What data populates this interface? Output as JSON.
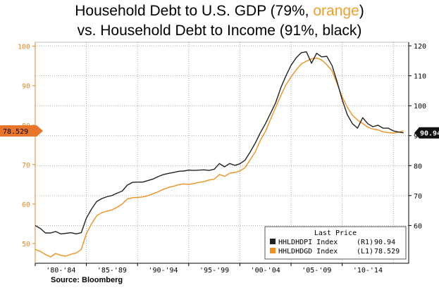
{
  "title": {
    "line1_prefix": "Household Debt to U.S. GDP (79%, ",
    "line1_highlight": "orange",
    "line1_suffix": ")",
    "line2": "vs. Household Debt to Income (91%, black)"
  },
  "source": "Source: Bloomberg",
  "colors": {
    "orange": "#f0901e",
    "black": "#222222",
    "grid": "#9a9a9a",
    "left_axis": "#e08a2a"
  },
  "chart_data": {
    "type": "line",
    "x_labels": [
      "'80-'84",
      "'85-'89",
      "'90-'94",
      "'95-'99",
      "'00-'04",
      "'05-'09",
      "'10-'14"
    ],
    "x_range": [
      1980,
      2016.5
    ],
    "left_axis": {
      "ticks": [
        "50",
        "60",
        "70",
        "80",
        "90",
        "100"
      ],
      "ylim": [
        45,
        101
      ],
      "color": "orange"
    },
    "right_axis": {
      "ticks": [
        "60",
        "70",
        "80",
        "90",
        "100",
        "110",
        "120"
      ],
      "ylim": [
        47.4,
        121.2
      ]
    },
    "grid": true,
    "last_price_tags": {
      "left": "78.529",
      "right": "90.94"
    },
    "legend": {
      "title": "Last Price",
      "placement": "bottom-right",
      "entries": [
        {
          "label": "HHLDHDPI Index",
          "axis": "(R1)",
          "value": "90.94",
          "color": "black"
        },
        {
          "label": "HHLDHDGD Index",
          "axis": "(L1)",
          "value": "78.529",
          "color": "orange"
        }
      ]
    },
    "series": [
      {
        "name": "HHLDHDGD Index",
        "axis": "left",
        "color": "orange",
        "x": [
          1980,
          1980.5,
          1981,
          1981.5,
          1982,
          1982.5,
          1983,
          1983.5,
          1984,
          1984.5,
          1985,
          1985.5,
          1986,
          1986.5,
          1987,
          1987.5,
          1988,
          1988.5,
          1989,
          1989.5,
          1990,
          1990.5,
          1991,
          1991.5,
          1992,
          1992.5,
          1993,
          1993.5,
          1994,
          1994.5,
          1995,
          1995.5,
          1996,
          1996.5,
          1997,
          1997.5,
          1998,
          1998.5,
          1999,
          1999.5,
          2000,
          2000.5,
          2001,
          2001.5,
          2002,
          2002.5,
          2003,
          2003.5,
          2004,
          2004.5,
          2005,
          2005.5,
          2006,
          2006.5,
          2007,
          2007.5,
          2008,
          2008.5,
          2009,
          2009.5,
          2010,
          2010.5,
          2011,
          2011.5,
          2012,
          2012.5,
          2013,
          2013.5,
          2014,
          2014.5,
          2015,
          2015.5,
          2016
        ],
        "values": [
          48.5,
          48.0,
          47.2,
          46.6,
          47.5,
          47.0,
          46.8,
          47.3,
          47.6,
          48.5,
          52.5,
          55.0,
          57.0,
          57.8,
          58.2,
          58.5,
          59.2,
          60.0,
          61.3,
          61.6,
          61.7,
          61.8,
          62.1,
          62.6,
          63.1,
          63.7,
          64.2,
          64.5,
          64.9,
          65.1,
          65.0,
          65.2,
          65.5,
          65.7,
          66.1,
          66.3,
          67.5,
          67.0,
          67.8,
          68.0,
          68.4,
          69.2,
          71.2,
          73.2,
          76.2,
          78.4,
          81.5,
          84.5,
          87.5,
          90.2,
          92.2,
          94.0,
          95.5,
          96.2,
          96.8,
          97.0,
          96.5,
          95.3,
          93.8,
          90.5,
          87.2,
          84.5,
          82.5,
          81.3,
          80.4,
          79.5,
          79.0,
          78.8,
          78.3,
          78.1,
          78.0,
          78.2,
          78.529
        ]
      },
      {
        "name": "HHLDHDPI Index",
        "axis": "right",
        "color": "black",
        "x": [
          1980,
          1980.5,
          1981,
          1981.5,
          1982,
          1982.5,
          1983,
          1983.5,
          1984,
          1984.5,
          1985,
          1985.5,
          1986,
          1986.5,
          1987,
          1987.5,
          1988,
          1988.5,
          1989,
          1989.5,
          1990,
          1990.5,
          1991,
          1991.5,
          1992,
          1992.5,
          1993,
          1993.5,
          1994,
          1994.5,
          1995,
          1995.5,
          1996,
          1996.5,
          1997,
          1997.5,
          1998,
          1998.5,
          1999,
          1999.5,
          2000,
          2000.5,
          2001,
          2001.5,
          2002,
          2002.5,
          2003,
          2003.5,
          2004,
          2004.5,
          2005,
          2005.5,
          2006,
          2006.5,
          2007,
          2007.5,
          2008,
          2008.5,
          2009,
          2009.5,
          2010,
          2010.5,
          2011,
          2011.5,
          2012,
          2012.5,
          2013,
          2013.5,
          2014,
          2014.5,
          2015,
          2015.5,
          2016
        ],
        "values": [
          60.0,
          59.0,
          57.5,
          57.5,
          58.0,
          57.2,
          57.4,
          57.6,
          57.2,
          57.6,
          62.5,
          65.5,
          68.0,
          69.0,
          69.6,
          70.0,
          70.8,
          71.5,
          73.5,
          74.4,
          74.5,
          74.5,
          75.0,
          75.5,
          76.3,
          77.0,
          77.4,
          77.7,
          78.1,
          78.2,
          78.5,
          78.4,
          78.5,
          78.6,
          78.4,
          78.8,
          80.7,
          79.6,
          80.7,
          80.1,
          80.6,
          81.8,
          84.5,
          87.5,
          91.0,
          94.0,
          97.5,
          101.0,
          106.0,
          110.0,
          113.5,
          116.0,
          117.7,
          118.0,
          114.2,
          117.5,
          116.3,
          116.5,
          113.5,
          108.0,
          102.0,
          97.0,
          94.0,
          92.5,
          96.0,
          94.0,
          93.0,
          93.5,
          92.5,
          92.5,
          91.6,
          91.2,
          90.94
        ]
      }
    ]
  }
}
